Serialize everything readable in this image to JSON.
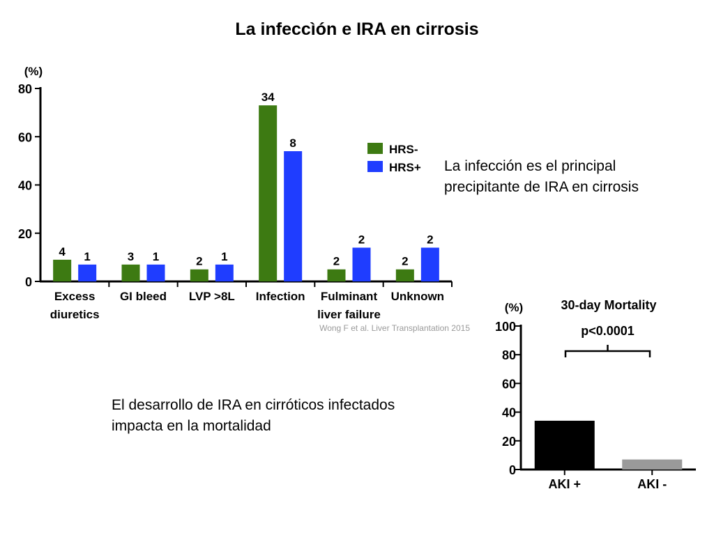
{
  "slide": {
    "title": "La infeccìón e IRA en cirrosis",
    "note_infection": [
      "La infección es el principal",
      "precipitante de IRA en cirrosis"
    ],
    "note_mortality": [
      "El desarrollo de IRA en cirróticos infectados",
      "impacta en la mortalidad"
    ]
  },
  "chart_data": [
    {
      "type": "bar",
      "ylabel": "(%)",
      "ylim": [
        0,
        80
      ],
      "yticks": [
        0,
        20,
        40,
        60,
        80
      ],
      "categories": [
        [
          "Excess",
          "diuretics"
        ],
        [
          "GI bleed"
        ],
        [
          "LVP >8L"
        ],
        [
          "Infection"
        ],
        [
          "Fulminant",
          "liver failure"
        ],
        [
          "Unknown"
        ]
      ],
      "series": [
        {
          "name": "HRS-",
          "color": "#3d7a12",
          "values": [
            9,
            7,
            5,
            73,
            5,
            5
          ],
          "labels": [
            "4",
            "3",
            "2",
            "34",
            "2",
            "2"
          ]
        },
        {
          "name": "HRS+",
          "color": "#1f3dff",
          "values": [
            7,
            7,
            7,
            54,
            14,
            14
          ],
          "labels": [
            "1",
            "1",
            "1",
            "8",
            "2",
            "2"
          ]
        }
      ],
      "legend_position": "right",
      "source": "Wong F et al. Liver Transplantation 2015"
    },
    {
      "type": "bar",
      "title": "30-day Mortality",
      "ylabel": "(%)",
      "ylim": [
        0,
        100
      ],
      "yticks": [
        0,
        20,
        40,
        60,
        80,
        100
      ],
      "categories": [
        "AKI +",
        "AKI -"
      ],
      "values": [
        34,
        7
      ],
      "colors": [
        "#000000",
        "#9a9a9a"
      ],
      "annotation": "p<0.0001"
    }
  ]
}
